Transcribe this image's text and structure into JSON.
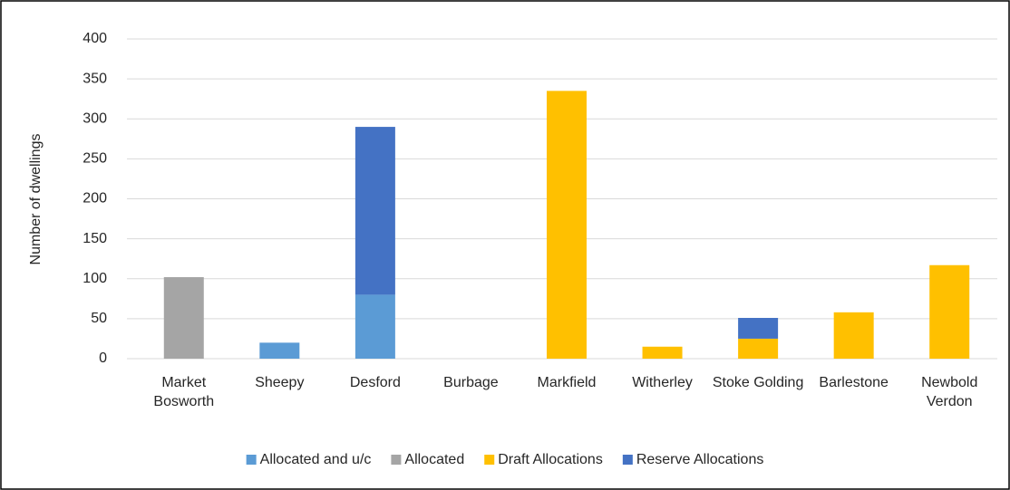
{
  "chart_data": {
    "type": "stacked_bar",
    "y_label": "Number of dwellings",
    "categories": [
      "Market Bosworth",
      "Sheepy",
      "Desford",
      "Burbage",
      "Markfield",
      "Witherley",
      "Stoke Golding",
      "Barlestone",
      "Newbold Verdon"
    ],
    "series": [
      {
        "name": "Allocated and u/c",
        "color": "#5b9bd5",
        "values": [
          0,
          20,
          80,
          0,
          0,
          0,
          0,
          0,
          0
        ]
      },
      {
        "name": "Allocated",
        "color": "#a5a5a5",
        "values": [
          102,
          0,
          0,
          0,
          0,
          0,
          0,
          0,
          0
        ]
      },
      {
        "name": "Draft Allocations",
        "color": "#ffc000",
        "values": [
          0,
          0,
          0,
          0,
          335,
          15,
          25,
          58,
          117
        ]
      },
      {
        "name": "Reserve Allocations",
        "color": "#4472c4",
        "values": [
          0,
          0,
          210,
          0,
          0,
          0,
          26,
          0,
          0
        ]
      }
    ],
    "ylim": [
      0,
      400
    ],
    "yticks": [
      0,
      50,
      100,
      150,
      200,
      250,
      300,
      350,
      400
    ],
    "grid": true,
    "legend": "bottom"
  }
}
